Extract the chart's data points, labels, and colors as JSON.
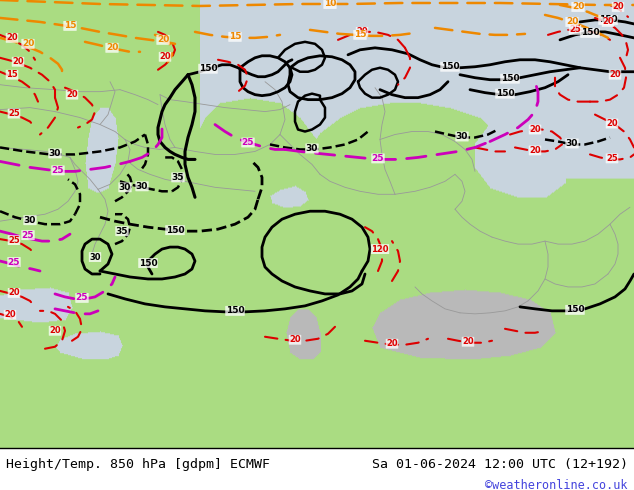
{
  "title_left": "Height/Temp. 850 hPa [gdpm] ECMWF",
  "title_right": "Sa 01-06-2024 12:00 UTC (12+192)",
  "watermark": "©weatheronline.co.uk",
  "fig_width": 6.34,
  "fig_height": 4.9,
  "dpi": 100,
  "bottom_bar_color": "#e8e8e8",
  "title_fontsize": 9.5,
  "watermark_color": "#4444dd",
  "land_green": "#aadd88",
  "land_light_green": "#ccee99",
  "sea_color": "#d0d8e0",
  "gray_land": "#c0c0c0",
  "contour_black": "#000000",
  "contour_red": "#dd0000",
  "contour_orange": "#ee8800",
  "contour_magenta": "#cc00bb"
}
